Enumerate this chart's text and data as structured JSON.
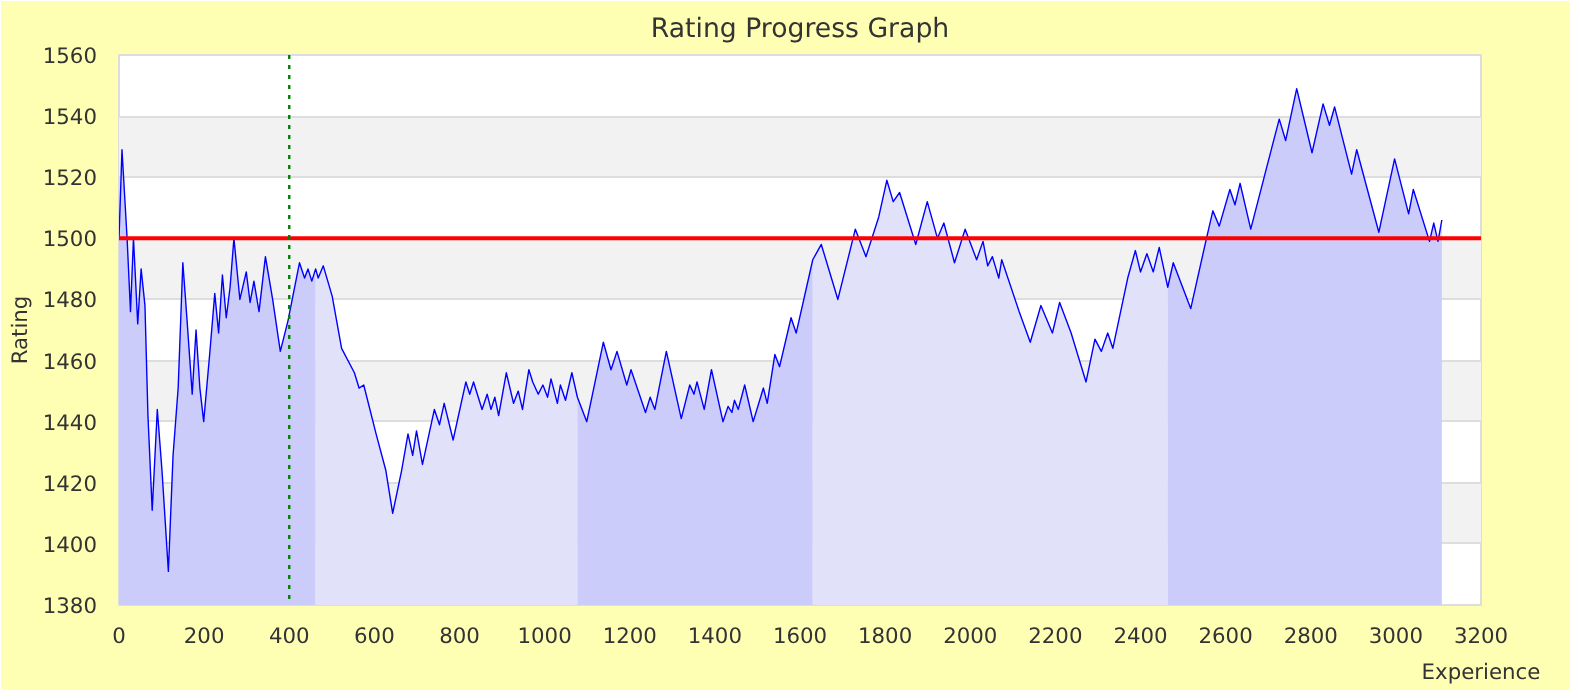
{
  "chart_data": {
    "type": "line",
    "title": "Rating Progress Graph",
    "xlabel": "Experience",
    "ylabel": "Rating",
    "xlim": [
      0,
      3200
    ],
    "xticks": [
      0,
      200,
      400,
      600,
      800,
      1000,
      1200,
      1400,
      1600,
      1800,
      2000,
      2200,
      2400,
      2600,
      2800,
      3000,
      3200
    ],
    "ylim": [
      1380,
      1560
    ],
    "yticks": [
      1380,
      1400,
      1420,
      1440,
      1460,
      1480,
      1500,
      1520,
      1540,
      1560
    ],
    "grid": "y",
    "marker": "none",
    "line_style": "solid",
    "ref_lines": [
      {
        "axis": "y",
        "value": 1500,
        "color": "#ff0000",
        "line_style": "solid"
      },
      {
        "axis": "x",
        "value": 400,
        "color": "#008000",
        "line_style": "dotted"
      }
    ],
    "series": [
      {
        "type": "area",
        "color": "#ccccfa",
        "x": [
          0,
          7,
          19,
          27,
          34,
          44,
          52,
          61,
          68,
          78,
          90,
          101,
          116,
          127,
          139,
          150,
          160,
          172,
          181,
          190,
          199,
          213,
          225,
          234,
          243,
          252,
          261,
          270,
          284,
          299,
          308,
          317,
          329,
          344,
          361,
          379,
          397,
          424,
          436,
          444,
          453,
          462
        ],
        "values": [
          1500,
          1529,
          1500,
          1476,
          1500,
          1472,
          1490,
          1478,
          1442,
          1411,
          1444,
          1424,
          1391,
          1429,
          1451,
          1492,
          1473,
          1449,
          1470,
          1451,
          1440,
          1462,
          1482,
          1469,
          1488,
          1474,
          1484,
          1500,
          1480,
          1489,
          1479,
          1486,
          1476,
          1494,
          1480,
          1463,
          1473,
          1492,
          1487,
          1490,
          1486,
          1490
        ]
      },
      {
        "type": "area",
        "color": "#e1e1fa",
        "x": [
          462,
          468,
          480,
          501,
          523,
          553,
          564,
          575,
          604,
          627,
          643,
          664,
          679,
          690,
          699,
          713,
          741,
          753,
          764,
          785,
          815,
          824,
          833,
          853,
          865,
          874,
          883,
          892,
          910,
          927,
          938,
          948,
          963,
          972,
          985,
          996,
          1007,
          1015,
          1030,
          1037,
          1049,
          1064,
          1077
        ],
        "values": [
          1490,
          1487,
          1491,
          1481,
          1464,
          1456,
          1451,
          1452,
          1436,
          1424,
          1410,
          1424,
          1436,
          1429,
          1437,
          1426,
          1444,
          1439,
          1446,
          1434,
          1453,
          1449,
          1453,
          1444,
          1449,
          1444,
          1448,
          1442,
          1456,
          1446,
          1450,
          1444,
          1457,
          1453,
          1449,
          1452,
          1448,
          1454,
          1446,
          1452,
          1447,
          1456,
          1448
        ]
      },
      {
        "type": "area",
        "color": "#ccccfa",
        "x": [
          1077,
          1099,
          1114,
          1138,
          1156,
          1170,
          1193,
          1203,
          1237,
          1248,
          1259,
          1286,
          1321,
          1341,
          1351,
          1358,
          1375,
          1392,
          1419,
          1431,
          1440,
          1446,
          1455,
          1470,
          1490,
          1514,
          1523,
          1541,
          1552,
          1579,
          1591,
          1630
        ],
        "values": [
          1448,
          1440,
          1450,
          1466,
          1457,
          1463,
          1452,
          1457,
          1443,
          1448,
          1444,
          1463,
          1441,
          1452,
          1449,
          1453,
          1444,
          1457,
          1440,
          1445,
          1443,
          1447,
          1444,
          1452,
          1440,
          1451,
          1446,
          1462,
          1458,
          1474,
          1469,
          1493
        ]
      },
      {
        "type": "area",
        "color": "#e1e1fa",
        "x": [
          1630,
          1650,
          1689,
          1730,
          1755,
          1785,
          1804,
          1819,
          1834,
          1872,
          1899,
          1923,
          1938,
          1963,
          1988,
          2015,
          2030,
          2041,
          2052,
          2067,
          2074,
          2115,
          2141,
          2166,
          2193,
          2210,
          2237,
          2272,
          2293,
          2308,
          2323,
          2335,
          2370,
          2388,
          2400,
          2415,
          2430,
          2444,
          2464
        ],
        "values": [
          1493,
          1498,
          1480,
          1503,
          1494,
          1507,
          1519,
          1512,
          1515,
          1498,
          1512,
          1500,
          1505,
          1492,
          1503,
          1493,
          1499,
          1491,
          1494,
          1487,
          1493,
          1476,
          1466,
          1478,
          1469,
          1479,
          1469,
          1453,
          1467,
          1463,
          1469,
          1464,
          1487,
          1496,
          1489,
          1495,
          1489,
          1497,
          1484
        ]
      },
      {
        "type": "area",
        "color": "#ccccfa",
        "x": [
          2464,
          2477,
          2518,
          2555,
          2570,
          2585,
          2610,
          2622,
          2634,
          2659,
          2696,
          2726,
          2741,
          2767,
          2803,
          2829,
          2844,
          2856,
          2896,
          2908,
          2960,
          2997,
          3030,
          3041,
          3079,
          3089,
          3099,
          3108
        ],
        "values": [
          1484,
          1492,
          1477,
          1500,
          1509,
          1504,
          1516,
          1511,
          1518,
          1503,
          1523,
          1539,
          1532,
          1549,
          1528,
          1544,
          1537,
          1543,
          1521,
          1529,
          1502,
          1526,
          1508,
          1516,
          1499,
          1505,
          1499,
          1506
        ]
      },
      {
        "color": "#0000ff",
        "x": [
          0,
          7,
          19,
          27,
          34,
          44,
          52,
          61,
          68,
          78,
          90,
          101,
          116,
          127,
          139,
          150,
          160,
          172,
          181,
          190,
          199,
          213,
          225,
          234,
          243,
          252,
          261,
          270,
          284,
          299,
          308,
          317,
          329,
          344,
          361,
          379,
          397,
          424,
          436,
          444,
          453,
          462,
          468,
          480,
          501,
          523,
          553,
          564,
          575,
          604,
          627,
          643,
          664,
          679,
          690,
          699,
          713,
          741,
          753,
          764,
          785,
          815,
          824,
          833,
          853,
          865,
          874,
          883,
          892,
          910,
          927,
          938,
          948,
          963,
          972,
          985,
          996,
          1007,
          1015,
          1030,
          1037,
          1049,
          1064,
          1077,
          1099,
          1114,
          1138,
          1156,
          1170,
          1193,
          1203,
          1237,
          1248,
          1259,
          1286,
          1321,
          1341,
          1351,
          1358,
          1375,
          1392,
          1419,
          1431,
          1440,
          1446,
          1455,
          1470,
          1490,
          1514,
          1523,
          1541,
          1552,
          1579,
          1591,
          1630,
          1650,
          1689,
          1730,
          1755,
          1785,
          1804,
          1819,
          1834,
          1872,
          1899,
          1923,
          1938,
          1963,
          1988,
          2015,
          2030,
          2041,
          2052,
          2067,
          2074,
          2115,
          2141,
          2166,
          2193,
          2210,
          2237,
          2272,
          2293,
          2308,
          2323,
          2335,
          2370,
          2388,
          2400,
          2415,
          2430,
          2444,
          2464,
          2477,
          2518,
          2555,
          2570,
          2585,
          2610,
          2622,
          2634,
          2659,
          2696,
          2726,
          2741,
          2767,
          2803,
          2829,
          2844,
          2856,
          2896,
          2908,
          2960,
          2997,
          3030,
          3041,
          3079,
          3089,
          3099,
          3108
        ],
        "values": [
          1500,
          1529,
          1500,
          1476,
          1500,
          1472,
          1490,
          1478,
          1442,
          1411,
          1444,
          1424,
          1391,
          1429,
          1451,
          1492,
          1473,
          1449,
          1470,
          1451,
          1440,
          1462,
          1482,
          1469,
          1488,
          1474,
          1484,
          1500,
          1480,
          1489,
          1479,
          1486,
          1476,
          1494,
          1480,
          1463,
          1473,
          1492,
          1487,
          1490,
          1486,
          1490,
          1487,
          1491,
          1481,
          1464,
          1456,
          1451,
          1452,
          1436,
          1424,
          1410,
          1424,
          1436,
          1429,
          1437,
          1426,
          1444,
          1439,
          1446,
          1434,
          1453,
          1449,
          1453,
          1444,
          1449,
          1444,
          1448,
          1442,
          1456,
          1446,
          1450,
          1444,
          1457,
          1453,
          1449,
          1452,
          1448,
          1454,
          1446,
          1452,
          1447,
          1456,
          1448,
          1440,
          1450,
          1466,
          1457,
          1463,
          1452,
          1457,
          1443,
          1448,
          1444,
          1463,
          1441,
          1452,
          1449,
          1453,
          1444,
          1457,
          1440,
          1445,
          1443,
          1447,
          1444,
          1452,
          1440,
          1451,
          1446,
          1462,
          1458,
          1474,
          1469,
          1493,
          1498,
          1480,
          1503,
          1494,
          1507,
          1519,
          1512,
          1515,
          1498,
          1512,
          1500,
          1505,
          1492,
          1503,
          1493,
          1499,
          1491,
          1494,
          1487,
          1493,
          1476,
          1466,
          1478,
          1469,
          1479,
          1469,
          1453,
          1467,
          1463,
          1469,
          1464,
          1487,
          1496,
          1489,
          1495,
          1489,
          1497,
          1484,
          1492,
          1477,
          1500,
          1509,
          1504,
          1516,
          1511,
          1518,
          1503,
          1523,
          1539,
          1532,
          1549,
          1528,
          1544,
          1537,
          1543,
          1521,
          1529,
          1502,
          1526,
          1508,
          1516,
          1499,
          1505,
          1499,
          1506
        ]
      }
    ]
  }
}
